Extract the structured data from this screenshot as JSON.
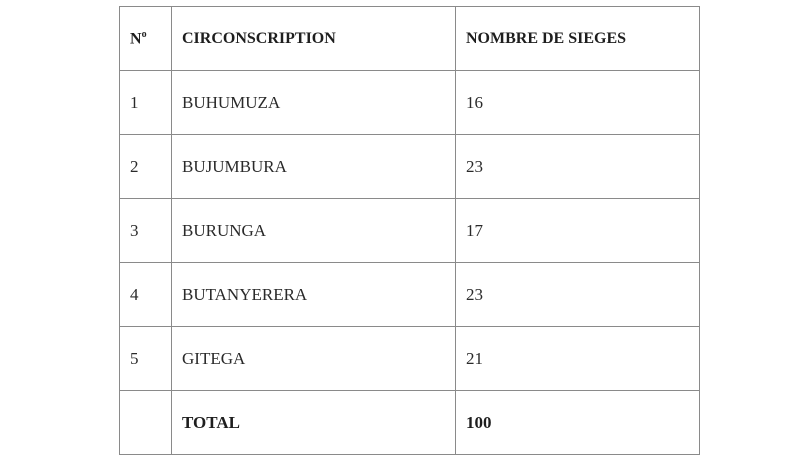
{
  "table": {
    "headers": {
      "num": "N",
      "num_sup": "o",
      "circonscription": "CIRCONSCRIPTION",
      "sieges": "NOMBRE DE SIEGES"
    },
    "rows": [
      {
        "num": "1",
        "circonscription": "BUHUMUZA",
        "sieges": "16"
      },
      {
        "num": "2",
        "circonscription": "BUJUMBURA",
        "sieges": "23"
      },
      {
        "num": "3",
        "circonscription": "BURUNGA",
        "sieges": "17"
      },
      {
        "num": "4",
        "circonscription": "BUTANYERERA",
        "sieges": "23"
      },
      {
        "num": "5",
        "circonscription": "GITEGA",
        "sieges": "21"
      }
    ],
    "total": {
      "label": "TOTAL",
      "value": "100"
    }
  }
}
